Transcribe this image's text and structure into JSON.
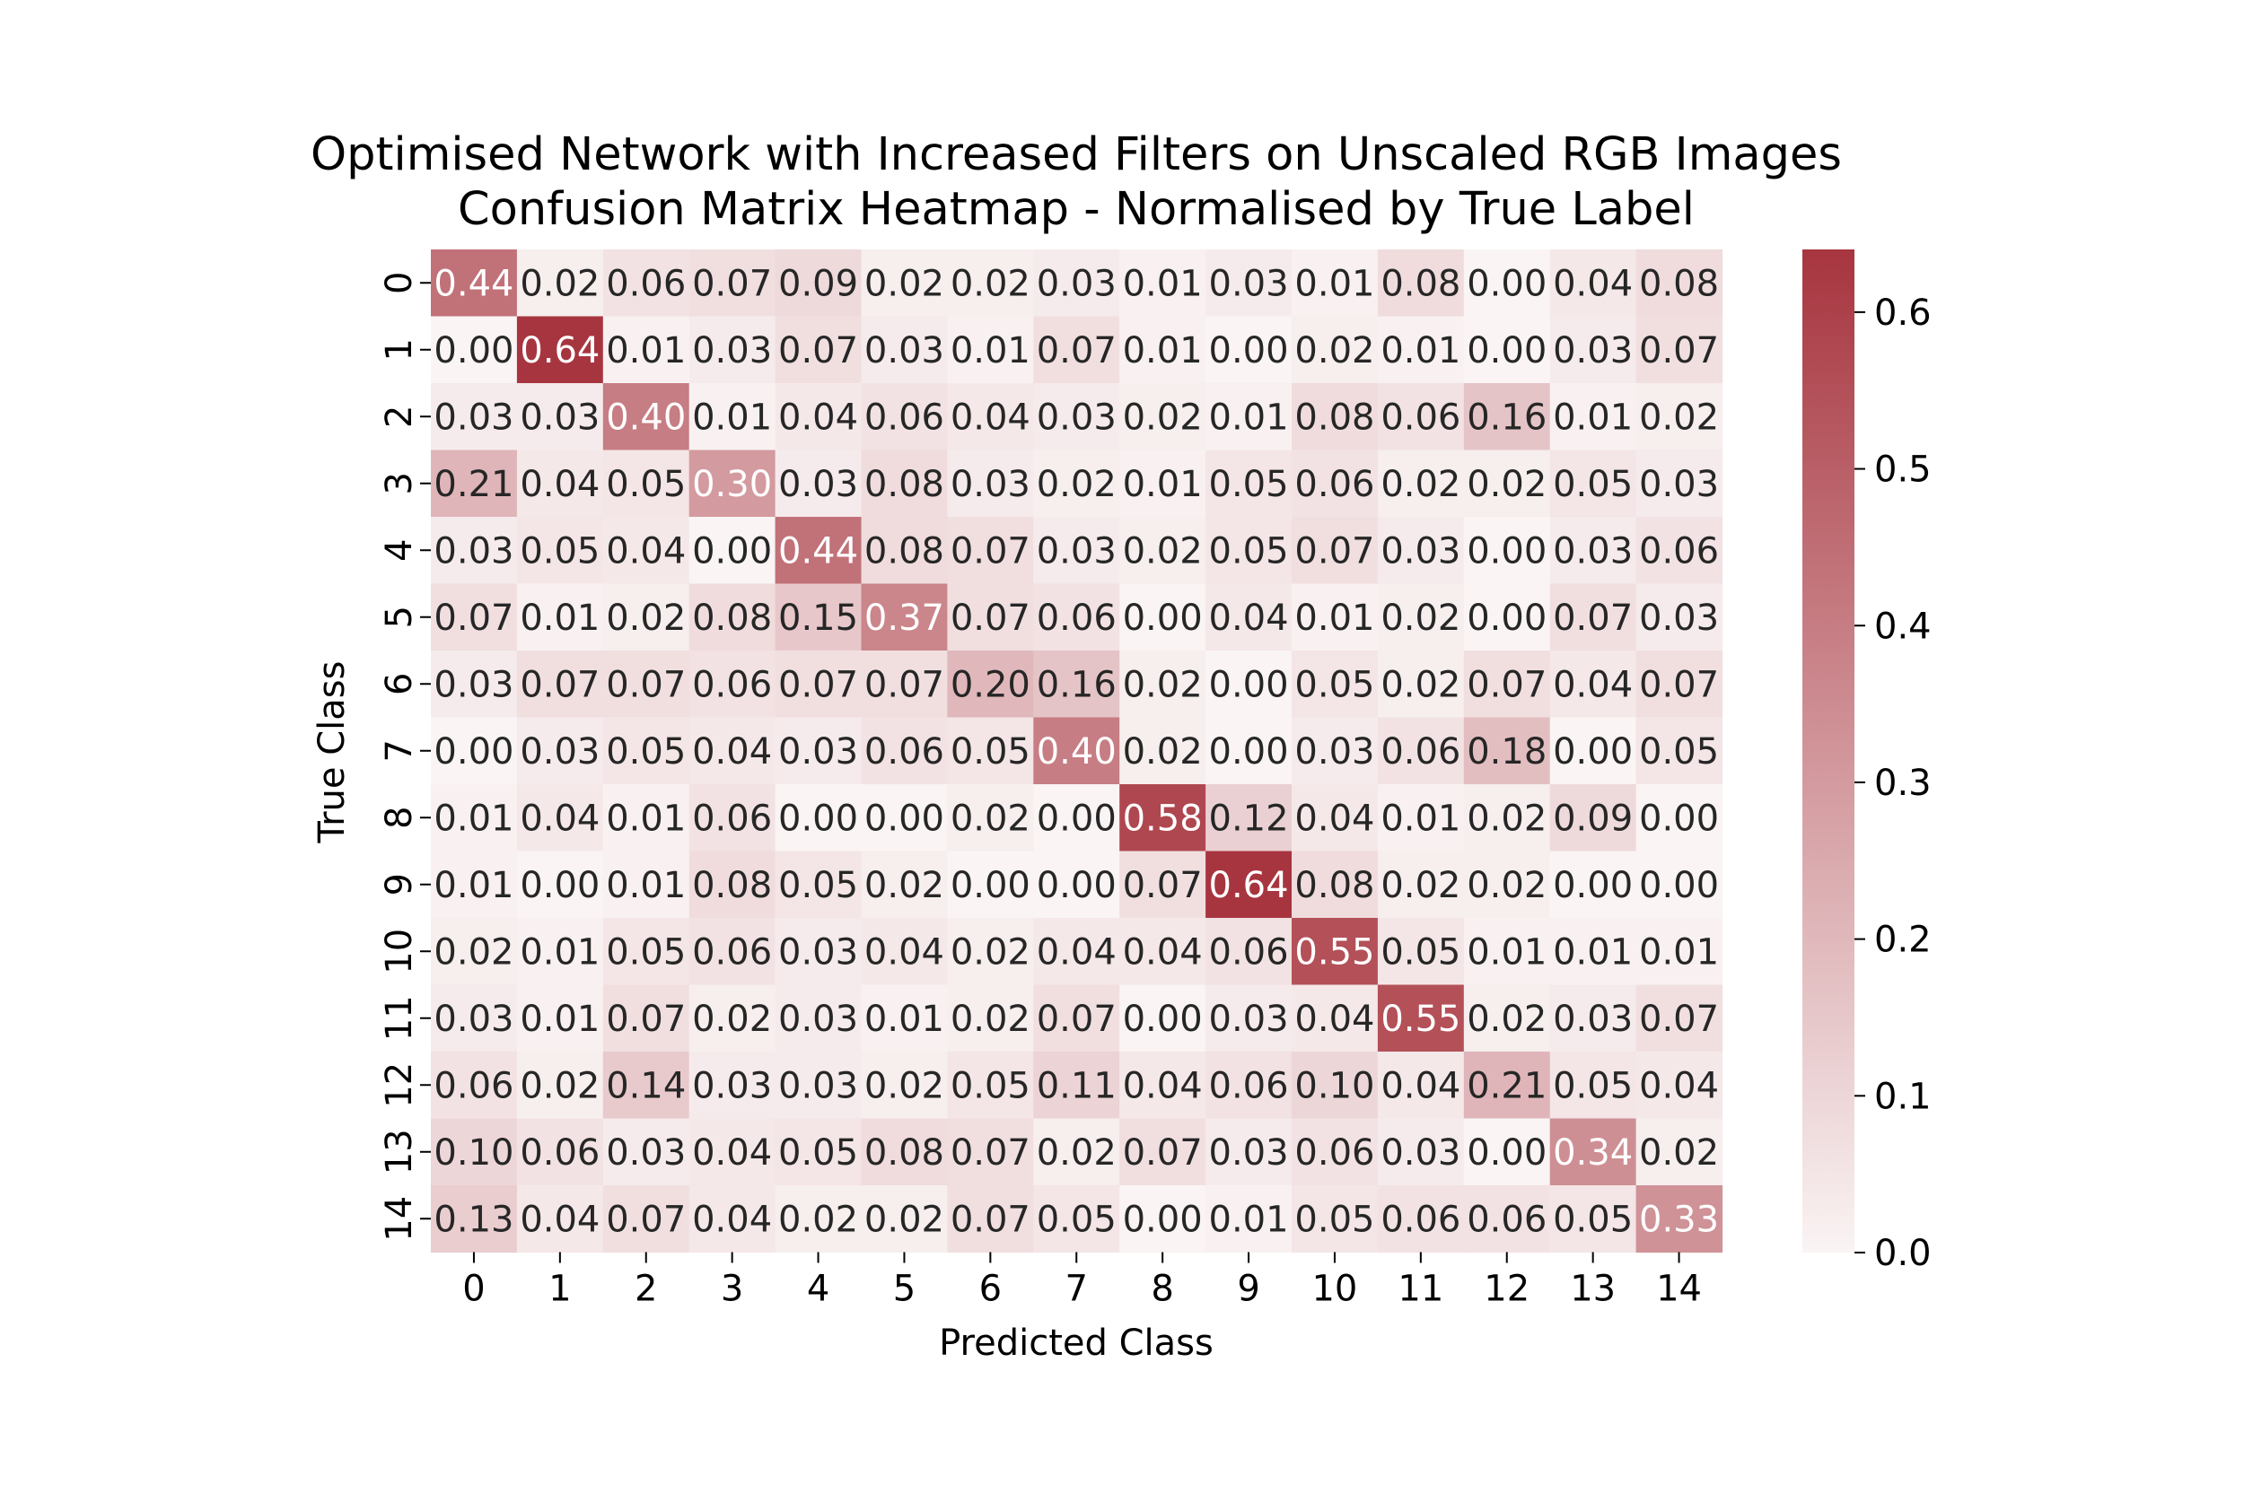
{
  "chart_data": {
    "type": "heatmap",
    "title": "Optimised Network with Increased Filters on Unscaled RGB Images",
    "subtitle": "Confusion Matrix Heatmap - Normalised by True Label",
    "xlabel": "Predicted Class",
    "ylabel": "True Class",
    "x_categories": [
      "0",
      "1",
      "2",
      "3",
      "4",
      "5",
      "6",
      "7",
      "8",
      "9",
      "10",
      "11",
      "12",
      "13",
      "14"
    ],
    "y_categories": [
      "0",
      "1",
      "2",
      "3",
      "4",
      "5",
      "6",
      "7",
      "8",
      "9",
      "10",
      "11",
      "12",
      "13",
      "14"
    ],
    "value_format": "2 decimals",
    "matrix": [
      [
        0.44,
        0.02,
        0.06,
        0.07,
        0.09,
        0.02,
        0.02,
        0.03,
        0.01,
        0.03,
        0.01,
        0.08,
        0.0,
        0.04,
        0.08
      ],
      [
        0.0,
        0.64,
        0.01,
        0.03,
        0.07,
        0.03,
        0.01,
        0.07,
        0.01,
        0.0,
        0.02,
        0.01,
        0.0,
        0.03,
        0.07
      ],
      [
        0.03,
        0.03,
        0.4,
        0.01,
        0.04,
        0.06,
        0.04,
        0.03,
        0.02,
        0.01,
        0.08,
        0.06,
        0.16,
        0.01,
        0.02
      ],
      [
        0.21,
        0.04,
        0.05,
        0.3,
        0.03,
        0.08,
        0.03,
        0.02,
        0.01,
        0.05,
        0.06,
        0.02,
        0.02,
        0.05,
        0.03
      ],
      [
        0.03,
        0.05,
        0.04,
        0.0,
        0.44,
        0.08,
        0.07,
        0.03,
        0.02,
        0.05,
        0.07,
        0.03,
        0.0,
        0.03,
        0.06
      ],
      [
        0.07,
        0.01,
        0.02,
        0.08,
        0.15,
        0.37,
        0.07,
        0.06,
        0.0,
        0.04,
        0.01,
        0.02,
        0.0,
        0.07,
        0.03
      ],
      [
        0.03,
        0.07,
        0.07,
        0.06,
        0.07,
        0.07,
        0.2,
        0.16,
        0.02,
        0.0,
        0.05,
        0.02,
        0.07,
        0.04,
        0.07
      ],
      [
        0.0,
        0.03,
        0.05,
        0.04,
        0.03,
        0.06,
        0.05,
        0.4,
        0.02,
        0.0,
        0.03,
        0.06,
        0.18,
        0.0,
        0.05
      ],
      [
        0.01,
        0.04,
        0.01,
        0.06,
        0.0,
        0.0,
        0.02,
        0.0,
        0.58,
        0.12,
        0.04,
        0.01,
        0.02,
        0.09,
        0.0
      ],
      [
        0.01,
        0.0,
        0.01,
        0.08,
        0.05,
        0.02,
        0.0,
        0.0,
        0.07,
        0.64,
        0.08,
        0.02,
        0.02,
        0.0,
        0.0
      ],
      [
        0.02,
        0.01,
        0.05,
        0.06,
        0.03,
        0.04,
        0.02,
        0.04,
        0.04,
        0.06,
        0.55,
        0.05,
        0.01,
        0.01,
        0.01
      ],
      [
        0.03,
        0.01,
        0.07,
        0.02,
        0.03,
        0.01,
        0.02,
        0.07,
        0.0,
        0.03,
        0.04,
        0.55,
        0.02,
        0.03,
        0.07
      ],
      [
        0.06,
        0.02,
        0.14,
        0.03,
        0.03,
        0.02,
        0.05,
        0.11,
        0.04,
        0.06,
        0.1,
        0.04,
        0.21,
        0.05,
        0.04
      ],
      [
        0.1,
        0.06,
        0.03,
        0.04,
        0.05,
        0.08,
        0.07,
        0.02,
        0.07,
        0.03,
        0.06,
        0.03,
        0.0,
        0.34,
        0.02
      ],
      [
        0.13,
        0.04,
        0.07,
        0.04,
        0.02,
        0.02,
        0.07,
        0.05,
        0.0,
        0.01,
        0.05,
        0.06,
        0.06,
        0.05,
        0.33
      ]
    ],
    "colorbar": {
      "vmin": 0.0,
      "vmax": 0.64,
      "ticks": [
        0.0,
        0.1,
        0.2,
        0.3,
        0.4,
        0.5,
        0.6
      ],
      "tick_labels": [
        "0.0",
        "0.1",
        "0.2",
        "0.3",
        "0.4",
        "0.5",
        "0.6"
      ],
      "color_low": "#faf4f4",
      "color_high": "#a7353f"
    },
    "text_color_dark": "#262626",
    "text_color_light": "#ffffff",
    "grid": false,
    "legend": "colorbar-right"
  }
}
